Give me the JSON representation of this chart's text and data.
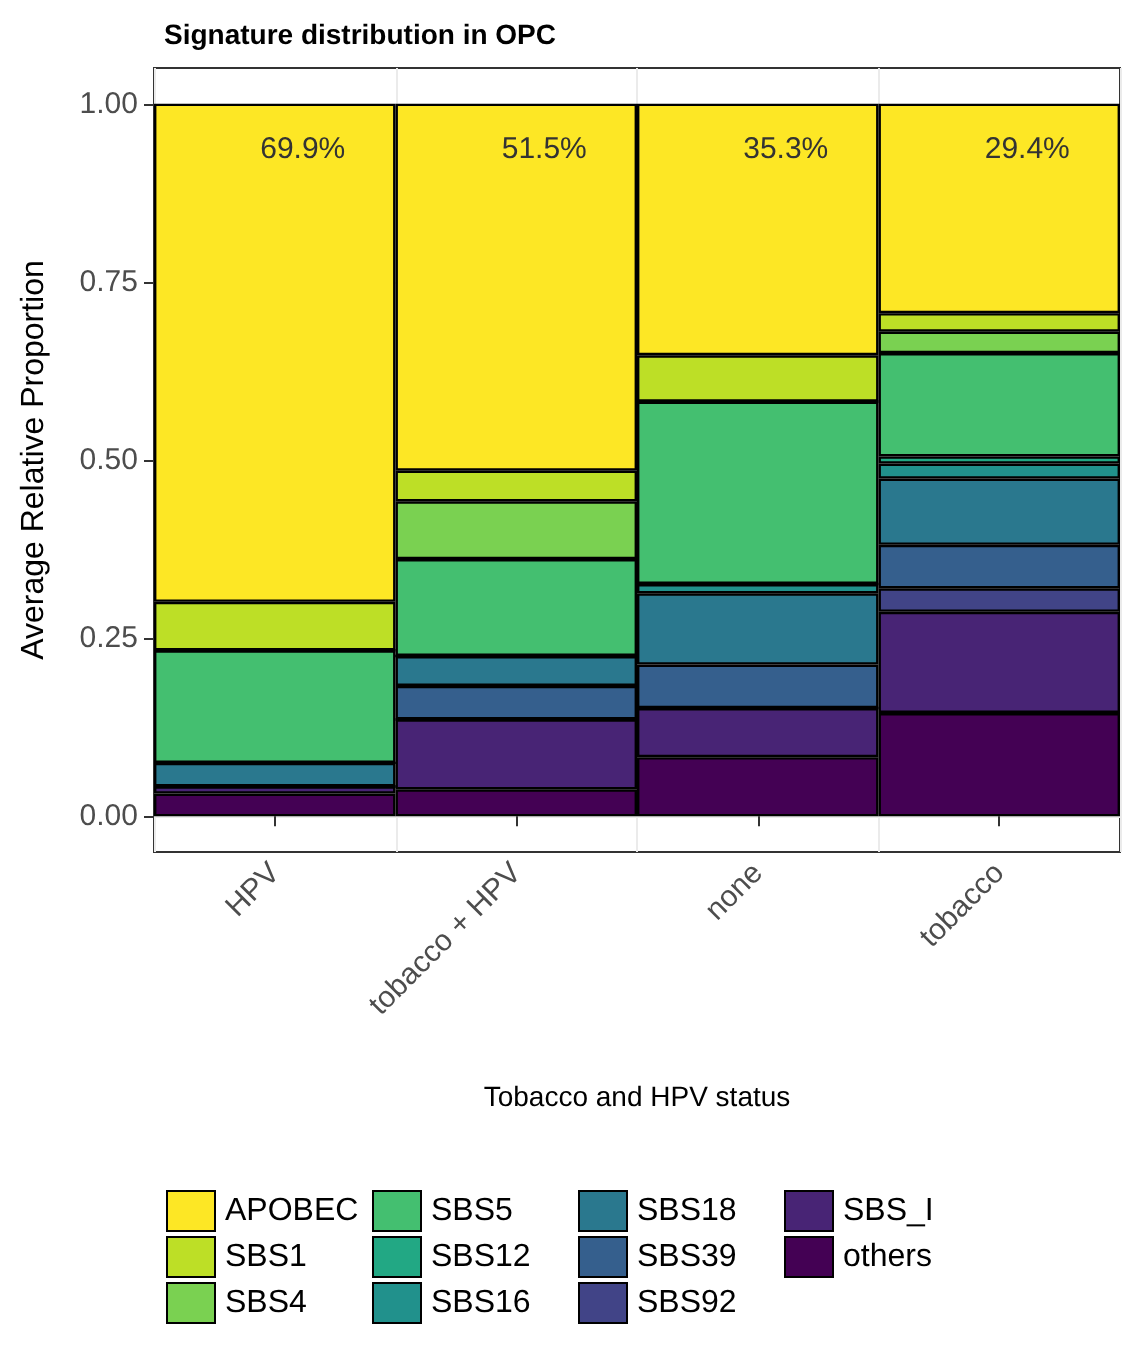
{
  "chart_data": {
    "type": "bar",
    "title": "Signature distribution in OPC",
    "xlabel": "Tobacco and HPV status",
    "ylabel": "Average Relative Proportion",
    "categories": [
      "HPV",
      "tobacco + HPV",
      "none",
      "tobacco"
    ],
    "stacked": true,
    "grid": true,
    "legend": "bottom",
    "ylim": [
      -0.05,
      1.05
    ],
    "yticks": [
      {
        "value": 0,
        "label": "0.00"
      },
      {
        "value": 0.25,
        "label": "0.25"
      },
      {
        "value": 0.5,
        "label": "0.50"
      },
      {
        "value": 0.75,
        "label": "0.75"
      },
      {
        "value": 1,
        "label": "1.00"
      }
    ],
    "series": [
      {
        "name": "others",
        "color": "#440154",
        "values": [
          0.032,
          0.038,
          0.083,
          0.145
        ]
      },
      {
        "name": "SBS_I",
        "color": "#482475",
        "values": [
          0.01,
          0.098,
          0.069,
          0.142
        ]
      },
      {
        "name": "SBS92",
        "color": "#414487",
        "values": [
          0,
          0,
          0,
          0.033
        ]
      },
      {
        "name": "SBS39",
        "color": "#355f8d",
        "values": [
          0,
          0.047,
          0.061,
          0.061
        ]
      },
      {
        "name": "SBS18",
        "color": "#2a788e",
        "values": [
          0.033,
          0.042,
          0.1,
          0.093
        ]
      },
      {
        "name": "SBS16",
        "color": "#21918c",
        "values": [
          0,
          0,
          0.013,
          0.021
        ]
      },
      {
        "name": "SBS12",
        "color": "#22a884",
        "values": [
          0,
          0,
          0,
          0.01
        ]
      },
      {
        "name": "SBS5",
        "color": "#44bf70",
        "values": [
          0.158,
          0.136,
          0.256,
          0.145
        ]
      },
      {
        "name": "SBS4",
        "color": "#7ad151",
        "values": [
          0,
          0.081,
          0,
          0.03
        ]
      },
      {
        "name": "SBS1",
        "color": "#bddf26",
        "values": [
          0.068,
          0.043,
          0.065,
          0.026
        ]
      },
      {
        "name": "APOBEC",
        "color": "#fde725",
        "values": [
          0.699,
          0.515,
          0.353,
          0.294
        ],
        "value_labels": [
          "69.9%",
          "51.5%",
          "35.3%",
          "29.4%"
        ]
      }
    ]
  }
}
